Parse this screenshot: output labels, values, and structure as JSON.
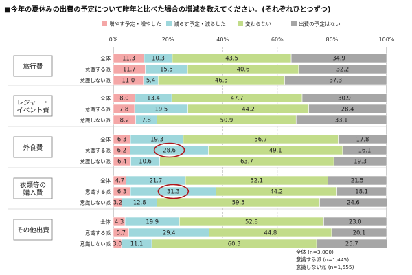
{
  "title": "■今年の夏休みの出費の予定について昨年と比べた場合の増減を教えてください。(それぞれひとつずつ)",
  "legend": [
    {
      "label": "増やす予定・増やした",
      "color": "#f4a7a7"
    },
    {
      "label": "減らす予定・減らした",
      "color": "#9ed7dc"
    },
    {
      "label": "変わらない",
      "color": "#c2dc8a"
    },
    {
      "label": "出費の予定はない",
      "color": "#a6a6a6"
    }
  ],
  "notes": [
    "全体 (n=3,000)",
    "意識する派 (n=1,445)",
    "意識しない派 (n=1,555)"
  ],
  "chart_data": {
    "type": "bar",
    "orientation": "horizontal",
    "stacked": true,
    "xlim": [
      0,
      100
    ],
    "x_ticks": [
      "0%",
      "20%",
      "40%",
      "60%",
      "80%",
      "100%"
    ],
    "series_names": [
      "増やす予定・増やした",
      "減らす予定・減らした",
      "変わらない",
      "出費の予定はない"
    ],
    "groups": [
      {
        "label": "旅行費",
        "rows": [
          {
            "label": "全体",
            "values": [
              11.3,
              10.3,
              43.5,
              34.9
            ]
          },
          {
            "label": "意識する派",
            "values": [
              11.7,
              15.5,
              40.6,
              32.2
            ]
          },
          {
            "label": "意識しない派",
            "values": [
              11.0,
              5.4,
              46.3,
              37.3
            ]
          }
        ]
      },
      {
        "label": "レジャー・イベント費",
        "rows": [
          {
            "label": "全体",
            "values": [
              8.0,
              13.4,
              47.7,
              30.9
            ]
          },
          {
            "label": "意識する派",
            "values": [
              7.8,
              19.5,
              44.2,
              28.4
            ]
          },
          {
            "label": "意識しない派",
            "values": [
              8.2,
              7.8,
              50.9,
              33.1
            ]
          }
        ]
      },
      {
        "label": "外食費",
        "rows": [
          {
            "label": "全体",
            "values": [
              6.3,
              19.3,
              56.7,
              17.8
            ]
          },
          {
            "label": "意識する派",
            "values": [
              6.2,
              28.6,
              49.1,
              16.1
            ]
          },
          {
            "label": "意識しない派",
            "values": [
              6.4,
              10.6,
              63.7,
              19.3
            ]
          }
        ]
      },
      {
        "label": "衣類等の購入費",
        "rows": [
          {
            "label": "全体",
            "values": [
              4.7,
              21.7,
              52.1,
              21.5
            ]
          },
          {
            "label": "意識する派",
            "values": [
              6.3,
              31.3,
              44.2,
              18.1
            ]
          },
          {
            "label": "意識しない派",
            "values": [
              3.2,
              12.8,
              59.5,
              24.6
            ]
          }
        ]
      },
      {
        "label": "その他出費",
        "rows": [
          {
            "label": "全体",
            "values": [
              4.3,
              19.9,
              52.8,
              23.0
            ]
          },
          {
            "label": "意識する派",
            "values": [
              5.7,
              29.4,
              44.8,
              20.1
            ]
          },
          {
            "label": "意識しない派",
            "values": [
              3.0,
              11.1,
              60.3,
              25.7
            ]
          }
        ]
      }
    ],
    "highlighted": [
      {
        "group": 2,
        "row": 1,
        "segment": 1
      },
      {
        "group": 3,
        "row": 1,
        "segment": 1
      }
    ]
  }
}
